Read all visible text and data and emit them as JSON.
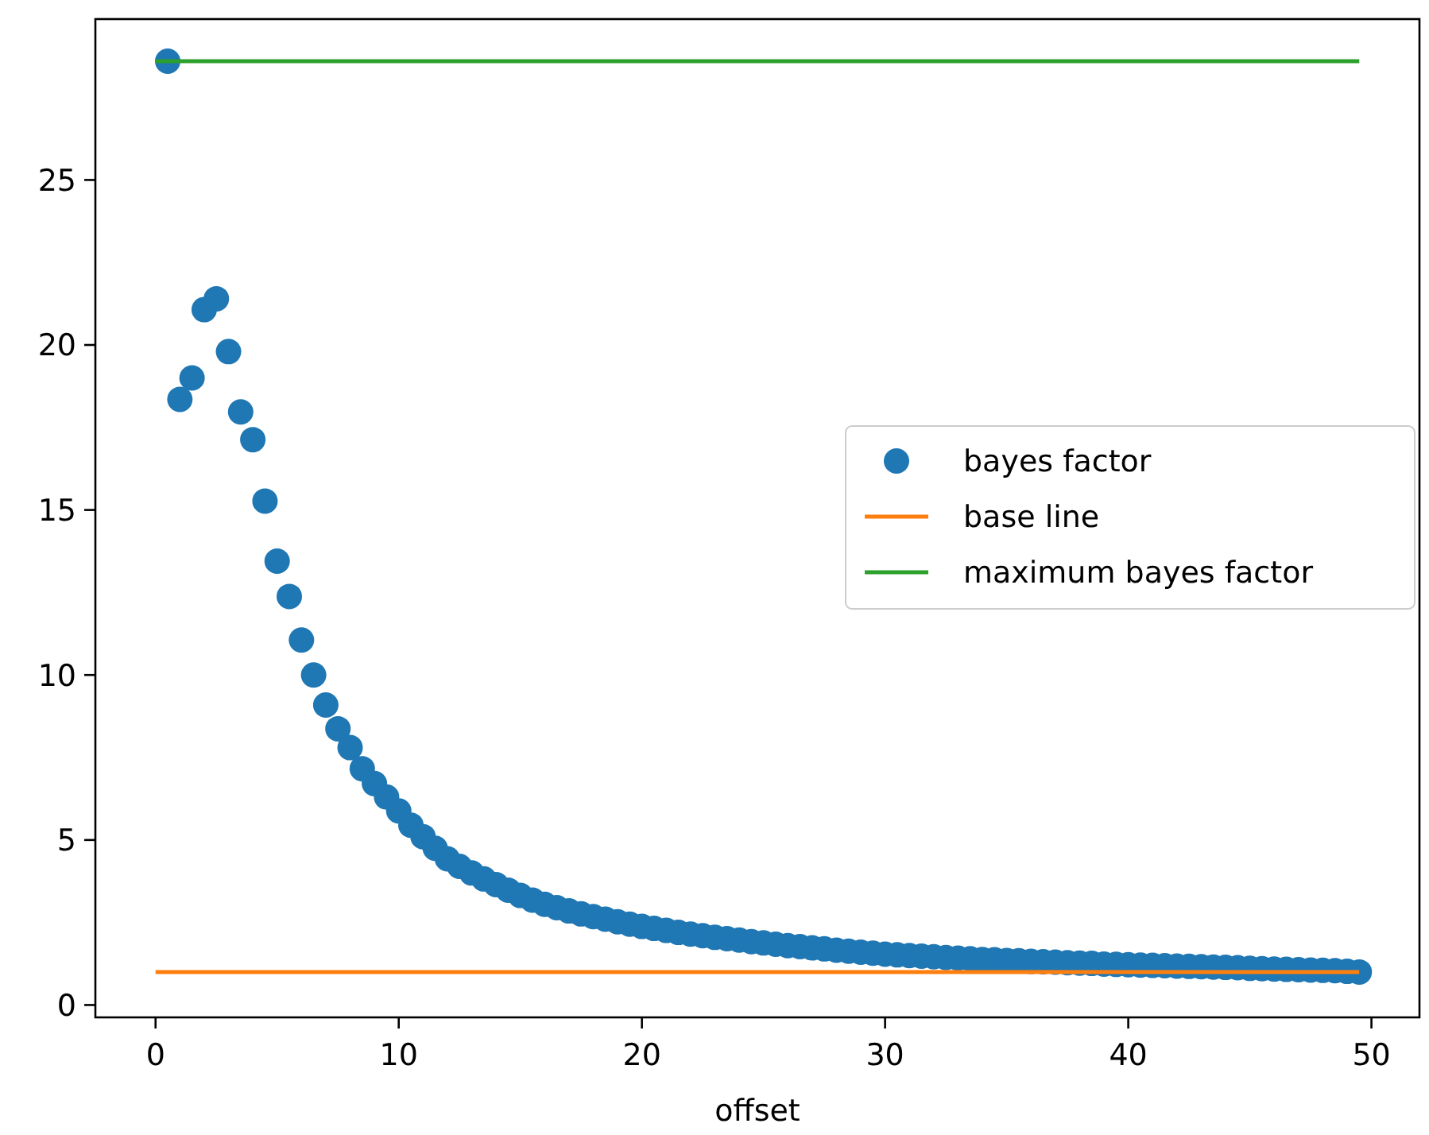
{
  "chart_data": {
    "type": "scatter",
    "xlabel": "offset",
    "xlim": [
      -2.475,
      51.975
    ],
    "ylim": [
      -0.375,
      29.875
    ],
    "xticks": [
      0,
      10,
      20,
      30,
      40,
      50
    ],
    "yticks": [
      0,
      5,
      10,
      15,
      20,
      25
    ],
    "grid": false,
    "legend": "right",
    "series": [
      {
        "name": "bayes factor",
        "marker": "circle",
        "color": "#1f77b4",
        "x": [
          0.5,
          1,
          1.5,
          2,
          2.5,
          3,
          3.5,
          4,
          4.5,
          5,
          5.5,
          6,
          6.5,
          7,
          7.5,
          8,
          8.5,
          9,
          9.5,
          10,
          10.5,
          11,
          11.5,
          12,
          12.5,
          13,
          13.5,
          14,
          14.5,
          15,
          15.5,
          16,
          16.5,
          17,
          17.5,
          18,
          18.5,
          19,
          19.5,
          20,
          20.5,
          21,
          21.5,
          22,
          22.5,
          23,
          23.5,
          24,
          24.5,
          25,
          25.5,
          26,
          26.5,
          27,
          27.5,
          28,
          28.5,
          29,
          29.5,
          30,
          30.5,
          31,
          31.5,
          32,
          32.5,
          33,
          33.5,
          34,
          34.5,
          35,
          35.5,
          36,
          36.5,
          37,
          37.5,
          38,
          38.5,
          39,
          39.5,
          40,
          40.5,
          41,
          41.5,
          42,
          42.5,
          43,
          43.5,
          44,
          44.5,
          45,
          45.5,
          46,
          46.5,
          47,
          47.5,
          48,
          48.5,
          49,
          49.5
        ],
        "values": [
          28.6,
          18.35,
          19.0,
          21.07,
          21.4,
          19.8,
          17.97,
          17.13,
          15.27,
          13.45,
          12.38,
          11.06,
          10.0,
          9.09,
          8.37,
          7.8,
          7.16,
          6.71,
          6.3,
          5.88,
          5.45,
          5.1,
          4.75,
          4.43,
          4.2,
          4.0,
          3.82,
          3.65,
          3.48,
          3.32,
          3.18,
          3.05,
          2.95,
          2.85,
          2.76,
          2.68,
          2.6,
          2.52,
          2.45,
          2.38,
          2.32,
          2.26,
          2.2,
          2.15,
          2.1,
          2.05,
          2.01,
          1.97,
          1.92,
          1.88,
          1.84,
          1.8,
          1.77,
          1.73,
          1.7,
          1.66,
          1.63,
          1.6,
          1.57,
          1.54,
          1.52,
          1.5,
          1.48,
          1.46,
          1.44,
          1.42,
          1.4,
          1.38,
          1.37,
          1.35,
          1.34,
          1.32,
          1.31,
          1.3,
          1.28,
          1.27,
          1.26,
          1.24,
          1.23,
          1.22,
          1.21,
          1.2,
          1.19,
          1.18,
          1.17,
          1.16,
          1.15,
          1.14,
          1.13,
          1.11,
          1.1,
          1.09,
          1.08,
          1.07,
          1.06,
          1.05,
          1.04,
          1.02,
          1.0
        ]
      },
      {
        "name": "base line",
        "type": "line",
        "color": "#ff7f0e",
        "x": [
          0,
          49.5
        ],
        "values": [
          1,
          1
        ]
      },
      {
        "name": "maximum bayes factor",
        "type": "line",
        "color": "#2ca02c",
        "x": [
          0,
          49.5
        ],
        "values": [
          28.6,
          28.6
        ]
      }
    ]
  }
}
